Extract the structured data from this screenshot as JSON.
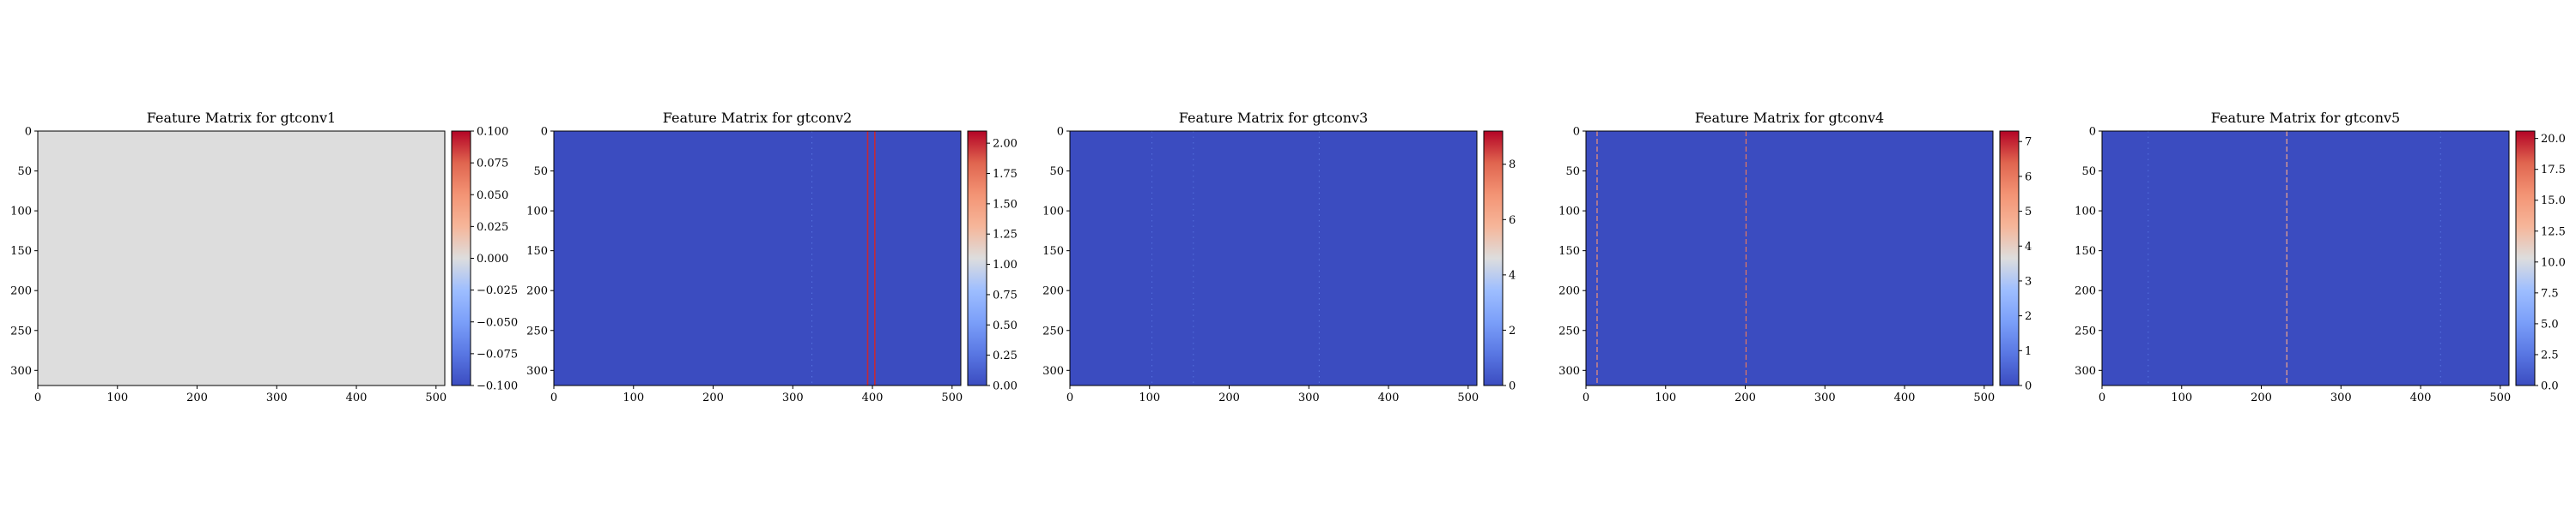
{
  "chart_data": [
    {
      "type": "heatmap",
      "title": "Feature Matrix for gtconv1",
      "colormap": "coolwarm",
      "fill_value": 0.0,
      "xlim": [
        0,
        511
      ],
      "ylim": [
        319,
        0
      ],
      "x_ticks": [
        "0",
        "100",
        "200",
        "300",
        "400",
        "500"
      ],
      "y_ticks": [
        "0",
        "50",
        "100",
        "150",
        "200",
        "250",
        "300"
      ],
      "colorbar_range": [
        -0.1,
        0.1
      ],
      "colorbar_ticks": [
        "0.100",
        "0.075",
        "0.050",
        "0.025",
        "0.000",
        "−0.025",
        "−0.050",
        "−0.075",
        "−0.100"
      ],
      "colorbar_tick_values": [
        0.1,
        0.075,
        0.05,
        0.025,
        0.0,
        -0.025,
        -0.05,
        -0.075,
        -0.1
      ],
      "stripes": []
    },
    {
      "type": "heatmap",
      "title": "Feature Matrix for gtconv2",
      "colormap": "coolwarm",
      "fill_value": 0.0,
      "xlim": [
        0,
        511
      ],
      "ylim": [
        319,
        0
      ],
      "x_ticks": [
        "0",
        "100",
        "200",
        "300",
        "400",
        "500"
      ],
      "y_ticks": [
        "0",
        "50",
        "100",
        "150",
        "200",
        "250",
        "300"
      ],
      "colorbar_range": [
        0,
        2.1
      ],
      "colorbar_ticks": [
        "2.00",
        "1.75",
        "1.50",
        "1.25",
        "1.00",
        "0.75",
        "0.50",
        "0.25",
        "0.00"
      ],
      "colorbar_tick_values": [
        2.0,
        1.75,
        1.5,
        1.25,
        1.0,
        0.75,
        0.5,
        0.25,
        0.0
      ],
      "stripes": [
        {
          "x": 324,
          "value": 0.3,
          "style": "dotted"
        },
        {
          "x": 394,
          "value": 2.0,
          "style": "solid"
        },
        {
          "x": 403,
          "value": 2.0,
          "style": "solid"
        }
      ]
    },
    {
      "type": "heatmap",
      "title": "Feature Matrix for gtconv3",
      "colormap": "coolwarm",
      "fill_value": 0.0,
      "xlim": [
        0,
        511
      ],
      "ylim": [
        319,
        0
      ],
      "x_ticks": [
        "0",
        "100",
        "200",
        "300",
        "400",
        "500"
      ],
      "y_ticks": [
        "0",
        "50",
        "100",
        "150",
        "200",
        "250",
        "300"
      ],
      "colorbar_range": [
        0,
        9.2
      ],
      "colorbar_ticks": [
        "8",
        "6",
        "4",
        "2",
        "0"
      ],
      "colorbar_tick_values": [
        8,
        6,
        4,
        2,
        0
      ],
      "stripes": [
        {
          "x": 103,
          "value": 1.2,
          "style": "dotted"
        },
        {
          "x": 155,
          "value": 1.2,
          "style": "dotted"
        },
        {
          "x": 313,
          "value": 1.5,
          "style": "dotted"
        }
      ]
    },
    {
      "type": "heatmap",
      "title": "Feature Matrix for gtconv4",
      "colormap": "coolwarm",
      "fill_value": 0.0,
      "xlim": [
        0,
        511
      ],
      "ylim": [
        319,
        0
      ],
      "x_ticks": [
        "0",
        "100",
        "200",
        "300",
        "400",
        "500"
      ],
      "y_ticks": [
        "0",
        "50",
        "100",
        "150",
        "200",
        "250",
        "300"
      ],
      "colorbar_range": [
        0,
        7.3
      ],
      "colorbar_ticks": [
        "7",
        "6",
        "5",
        "4",
        "3",
        "2",
        "1",
        "0"
      ],
      "colorbar_tick_values": [
        7,
        6,
        5,
        4,
        3,
        2,
        1,
        0
      ],
      "stripes": [
        {
          "x": 14,
          "value": 5.5,
          "style": "dashed"
        },
        {
          "x": 201,
          "value": 6.0,
          "style": "dashed"
        }
      ]
    },
    {
      "type": "heatmap",
      "title": "Feature Matrix for gtconv5",
      "colormap": "coolwarm",
      "fill_value": 0.0,
      "xlim": [
        0,
        511
      ],
      "ylim": [
        319,
        0
      ],
      "x_ticks": [
        "0",
        "100",
        "200",
        "300",
        "400",
        "500"
      ],
      "y_ticks": [
        "0",
        "50",
        "100",
        "150",
        "200",
        "250",
        "300"
      ],
      "colorbar_range": [
        0,
        20.6
      ],
      "colorbar_ticks": [
        "20.0",
        "17.5",
        "15.0",
        "12.5",
        "10.0",
        "7.5",
        "5.0",
        "2.5",
        "0.0"
      ],
      "colorbar_tick_values": [
        20.0,
        17.5,
        15.0,
        12.5,
        10.0,
        7.5,
        5.0,
        2.5,
        0.0
      ],
      "stripes": [
        {
          "x": 58,
          "value": 3.0,
          "style": "dotted"
        },
        {
          "x": 232,
          "value": 14.0,
          "style": "dashed"
        },
        {
          "x": 425,
          "value": 3.0,
          "style": "dotted"
        }
      ]
    }
  ]
}
